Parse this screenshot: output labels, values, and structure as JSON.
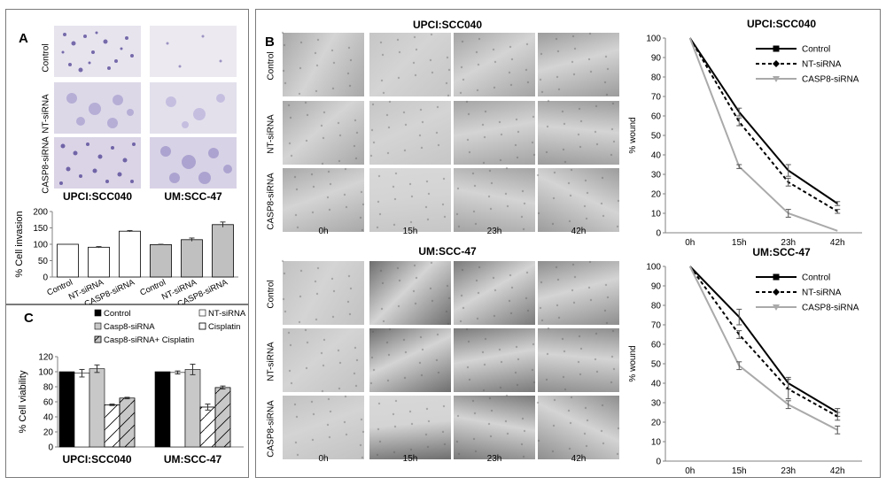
{
  "panelA": {
    "letter": "A",
    "row_labels": [
      "Control",
      "NT-siRNA",
      "CASP8-siRNA"
    ],
    "cell_lines": [
      "UPCI:SCC040",
      "UM:SCC-47"
    ]
  },
  "panelB": {
    "letter": "B",
    "row_labels": [
      "Control",
      "NT-siRNA",
      "CASP8-siRNA"
    ],
    "times": [
      "0h",
      "15h",
      "23h",
      "42h"
    ],
    "titles": [
      "UPCI:SCC040",
      "UM:SCC-47"
    ]
  },
  "panelC": {
    "letter": "C"
  },
  "chart_data": [
    {
      "id": "invasion",
      "type": "bar",
      "ylabel": "% Cell invasion",
      "ylim": [
        0,
        200
      ],
      "yticks": [
        0,
        50,
        100,
        150,
        200
      ],
      "categories": [
        "Control",
        "NT-siRNA",
        "CASP8-siRNA",
        "Control",
        "NT-siRNA",
        "CASP8-siRNA"
      ],
      "values": [
        100,
        91,
        140,
        99,
        114,
        160
      ],
      "errors": [
        0,
        2,
        2,
        1,
        5,
        8
      ],
      "fills": [
        "#ffffff",
        "#ffffff",
        "#ffffff",
        "#c0c0c0",
        "#c0c0c0",
        "#c0c0c0"
      ]
    },
    {
      "id": "viability",
      "type": "bar",
      "ylabel": "% Cell viability",
      "ylim": [
        0,
        120
      ],
      "yticks": [
        0,
        20,
        40,
        60,
        80,
        100,
        120
      ],
      "categories": [
        "UPCI:SCC040",
        "UM:SCC-47"
      ],
      "legend": [
        "Control",
        "NT-siRNA",
        "Casp8-siRNA",
        "Cisplatin",
        "Casp8-siRNA+ Cisplatin"
      ],
      "series": [
        {
          "name": "Control",
          "values": [
            100,
            100
          ],
          "errors": [
            0,
            0
          ],
          "fill": "#000000",
          "pattern": "solid"
        },
        {
          "name": "NT-siRNA",
          "values": [
            98,
            99
          ],
          "errors": [
            5,
            2
          ],
          "fill": "#ffffff",
          "pattern": "solid"
        },
        {
          "name": "Casp8-siRNA",
          "values": [
            104,
            103
          ],
          "errors": [
            5,
            7
          ],
          "fill": "#c8c8c8",
          "pattern": "solid"
        },
        {
          "name": "Cisplatin",
          "values": [
            56,
            53
          ],
          "errors": [
            1,
            4
          ],
          "fill": "#ffffff",
          "pattern": "hatch"
        },
        {
          "name": "Casp8-siRNA+ Cisplatin",
          "values": [
            65,
            79
          ],
          "errors": [
            1,
            2
          ],
          "fill": "#c8c8c8",
          "pattern": "hatch"
        }
      ]
    },
    {
      "id": "wound1",
      "type": "line",
      "title": "UPCI:SCC040",
      "ylabel": "% wound",
      "ylim": [
        0,
        100
      ],
      "yticks": [
        0,
        10,
        20,
        30,
        40,
        50,
        60,
        70,
        80,
        90,
        100
      ],
      "x": [
        "0h",
        "15h",
        "23h",
        "42h"
      ],
      "series": [
        {
          "name": "Control",
          "values": [
            100,
            62,
            32,
            15
          ],
          "errors": [
            0,
            2,
            3,
            1
          ],
          "color": "#000000",
          "dash": "",
          "marker": "square"
        },
        {
          "name": "NT-siRNA",
          "values": [
            100,
            57,
            26,
            11
          ],
          "errors": [
            0,
            2,
            2,
            1
          ],
          "color": "#000000",
          "dash": "4,3",
          "marker": "diamond"
        },
        {
          "name": "CASP8-siRNA",
          "values": [
            100,
            34,
            10,
            1
          ],
          "errors": [
            0,
            1,
            2,
            0
          ],
          "color": "#aaaaaa",
          "dash": "",
          "marker": "triangle"
        }
      ]
    },
    {
      "id": "wound2",
      "type": "line",
      "title": "UM:SCC-47",
      "ylabel": "% wound",
      "ylim": [
        0,
        100
      ],
      "yticks": [
        0,
        10,
        20,
        30,
        40,
        50,
        60,
        70,
        80,
        90,
        100
      ],
      "x": [
        "0h",
        "15h",
        "23h",
        "42h"
      ],
      "series": [
        {
          "name": "Control",
          "values": [
            100,
            74,
            40,
            25
          ],
          "errors": [
            0,
            4,
            3,
            2
          ],
          "color": "#000000",
          "dash": "",
          "marker": "square"
        },
        {
          "name": "NT-siRNA",
          "values": [
            100,
            65,
            37,
            23
          ],
          "errors": [
            0,
            2,
            5,
            2
          ],
          "color": "#000000",
          "dash": "4,3",
          "marker": "diamond"
        },
        {
          "name": "CASP8-siRNA",
          "values": [
            100,
            49,
            29,
            16
          ],
          "errors": [
            0,
            2,
            2,
            2
          ],
          "color": "#aaaaaa",
          "dash": "",
          "marker": "triangle"
        }
      ]
    }
  ]
}
